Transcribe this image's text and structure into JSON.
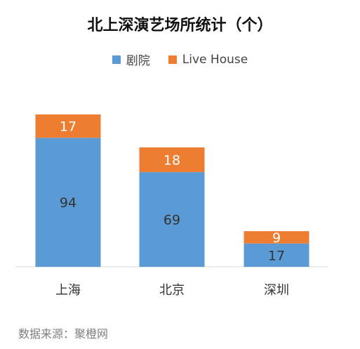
{
  "chart_data": {
    "type": "bar",
    "stacked": true,
    "title": "北上深演艺场所统计（个）",
    "categories": [
      "上海",
      "北京",
      "深圳"
    ],
    "series": [
      {
        "name": "剧院",
        "values": [
          94,
          69,
          17
        ],
        "color": "#5b9bd5"
      },
      {
        "name": "Live House",
        "values": [
          17,
          18,
          9
        ],
        "color": "#ed7d31"
      }
    ],
    "ylim": [
      0,
      111
    ],
    "grid": false,
    "legend": "top",
    "xlabel": "",
    "ylabel": ""
  },
  "footer": {
    "source": "数据来源：聚橙网"
  }
}
